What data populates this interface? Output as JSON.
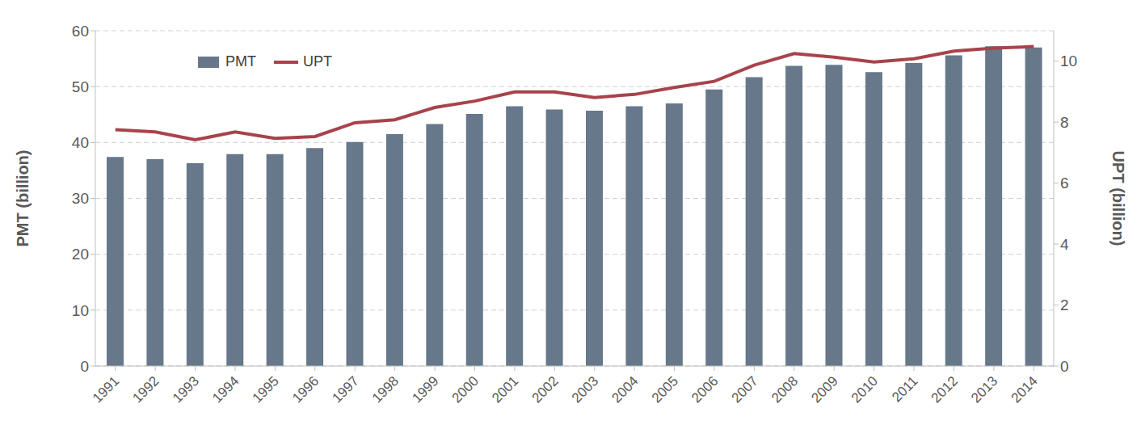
{
  "chart_data": {
    "type": "bar",
    "categories": [
      "1991",
      "1992",
      "1993",
      "1994",
      "1995",
      "1996",
      "1997",
      "1998",
      "1999",
      "2000",
      "2001",
      "2002",
      "2003",
      "2004",
      "2005",
      "2006",
      "2007",
      "2008",
      "2009",
      "2010",
      "2011",
      "2012",
      "2013",
      "2014"
    ],
    "series": [
      {
        "name": "PMT",
        "type": "bar",
        "color": "#66788a",
        "values": [
          37.4,
          37.0,
          36.3,
          37.9,
          37.9,
          39.0,
          40.1,
          41.5,
          43.3,
          45.1,
          46.5,
          45.9,
          45.7,
          46.5,
          47.0,
          49.5,
          51.7,
          53.7,
          53.9,
          52.6,
          54.2,
          55.6,
          57.2,
          57.0
        ]
      },
      {
        "name": "UPT",
        "type": "line",
        "axis": "y2",
        "color": "#a8434b",
        "values": [
          7.75,
          7.68,
          7.42,
          7.68,
          7.47,
          7.53,
          7.98,
          8.08,
          8.48,
          8.69,
          8.99,
          8.99,
          8.81,
          8.91,
          9.14,
          9.34,
          9.87,
          10.25,
          10.13,
          9.97,
          10.08,
          10.33,
          10.43,
          10.48
        ]
      }
    ],
    "y_label": "PMT (billion)",
    "y2_label": "UPT (billion)",
    "ylim": [
      0,
      60
    ],
    "yticks": [
      0,
      10,
      20,
      30,
      40,
      50,
      60
    ],
    "y2lim": [
      0,
      11
    ],
    "y2ticks": [
      0,
      2,
      4,
      6,
      8,
      10
    ],
    "grid": true,
    "legend": "upper left"
  }
}
